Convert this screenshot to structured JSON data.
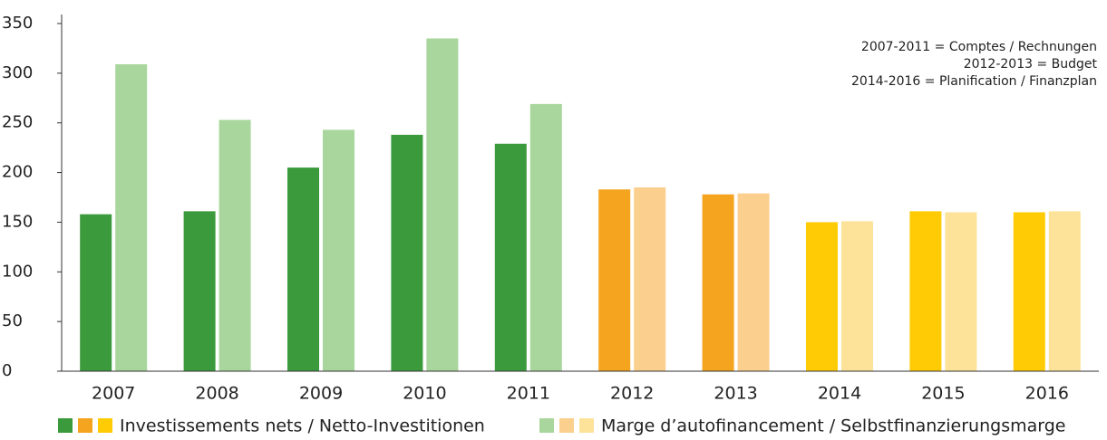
{
  "chart_data": {
    "type": "bar",
    "annotations": [
      "2007-2011 = Comptes / Rechnungen",
      "2012-2013 = Budget",
      "2014-2016 = Planification / Finanzplan"
    ],
    "categories": [
      "2007",
      "2008",
      "2009",
      "2010",
      "2011",
      "2012",
      "2013",
      "2014",
      "2015",
      "2016"
    ],
    "series": [
      {
        "name": "Investissements nets / Netto-Investitionen",
        "colors": [
          "#3a9a3c",
          "#3a9a3c",
          "#3a9a3c",
          "#3a9a3c",
          "#3a9a3c",
          "#f4a41e",
          "#f4a41e",
          "#ffcb05",
          "#ffcb05",
          "#ffcb05"
        ],
        "values": [
          158,
          161,
          205,
          238,
          229,
          183,
          178,
          150,
          161,
          160
        ]
      },
      {
        "name": "Marge d’autofinancement / Selbstfinanzierungsmarge",
        "colors": [
          "#a9d69c",
          "#a9d69c",
          "#a9d69c",
          "#a9d69c",
          "#a9d69c",
          "#fbcf8d",
          "#fbcf8d",
          "#fde39a",
          "#fde39a",
          "#fde39a"
        ],
        "values": [
          309,
          253,
          243,
          335,
          269,
          185,
          179,
          151,
          160,
          161
        ]
      }
    ],
    "ylim": [
      0,
      350
    ],
    "yticks": [
      0,
      50,
      100,
      150,
      200,
      250,
      300,
      350
    ],
    "grid": false
  }
}
